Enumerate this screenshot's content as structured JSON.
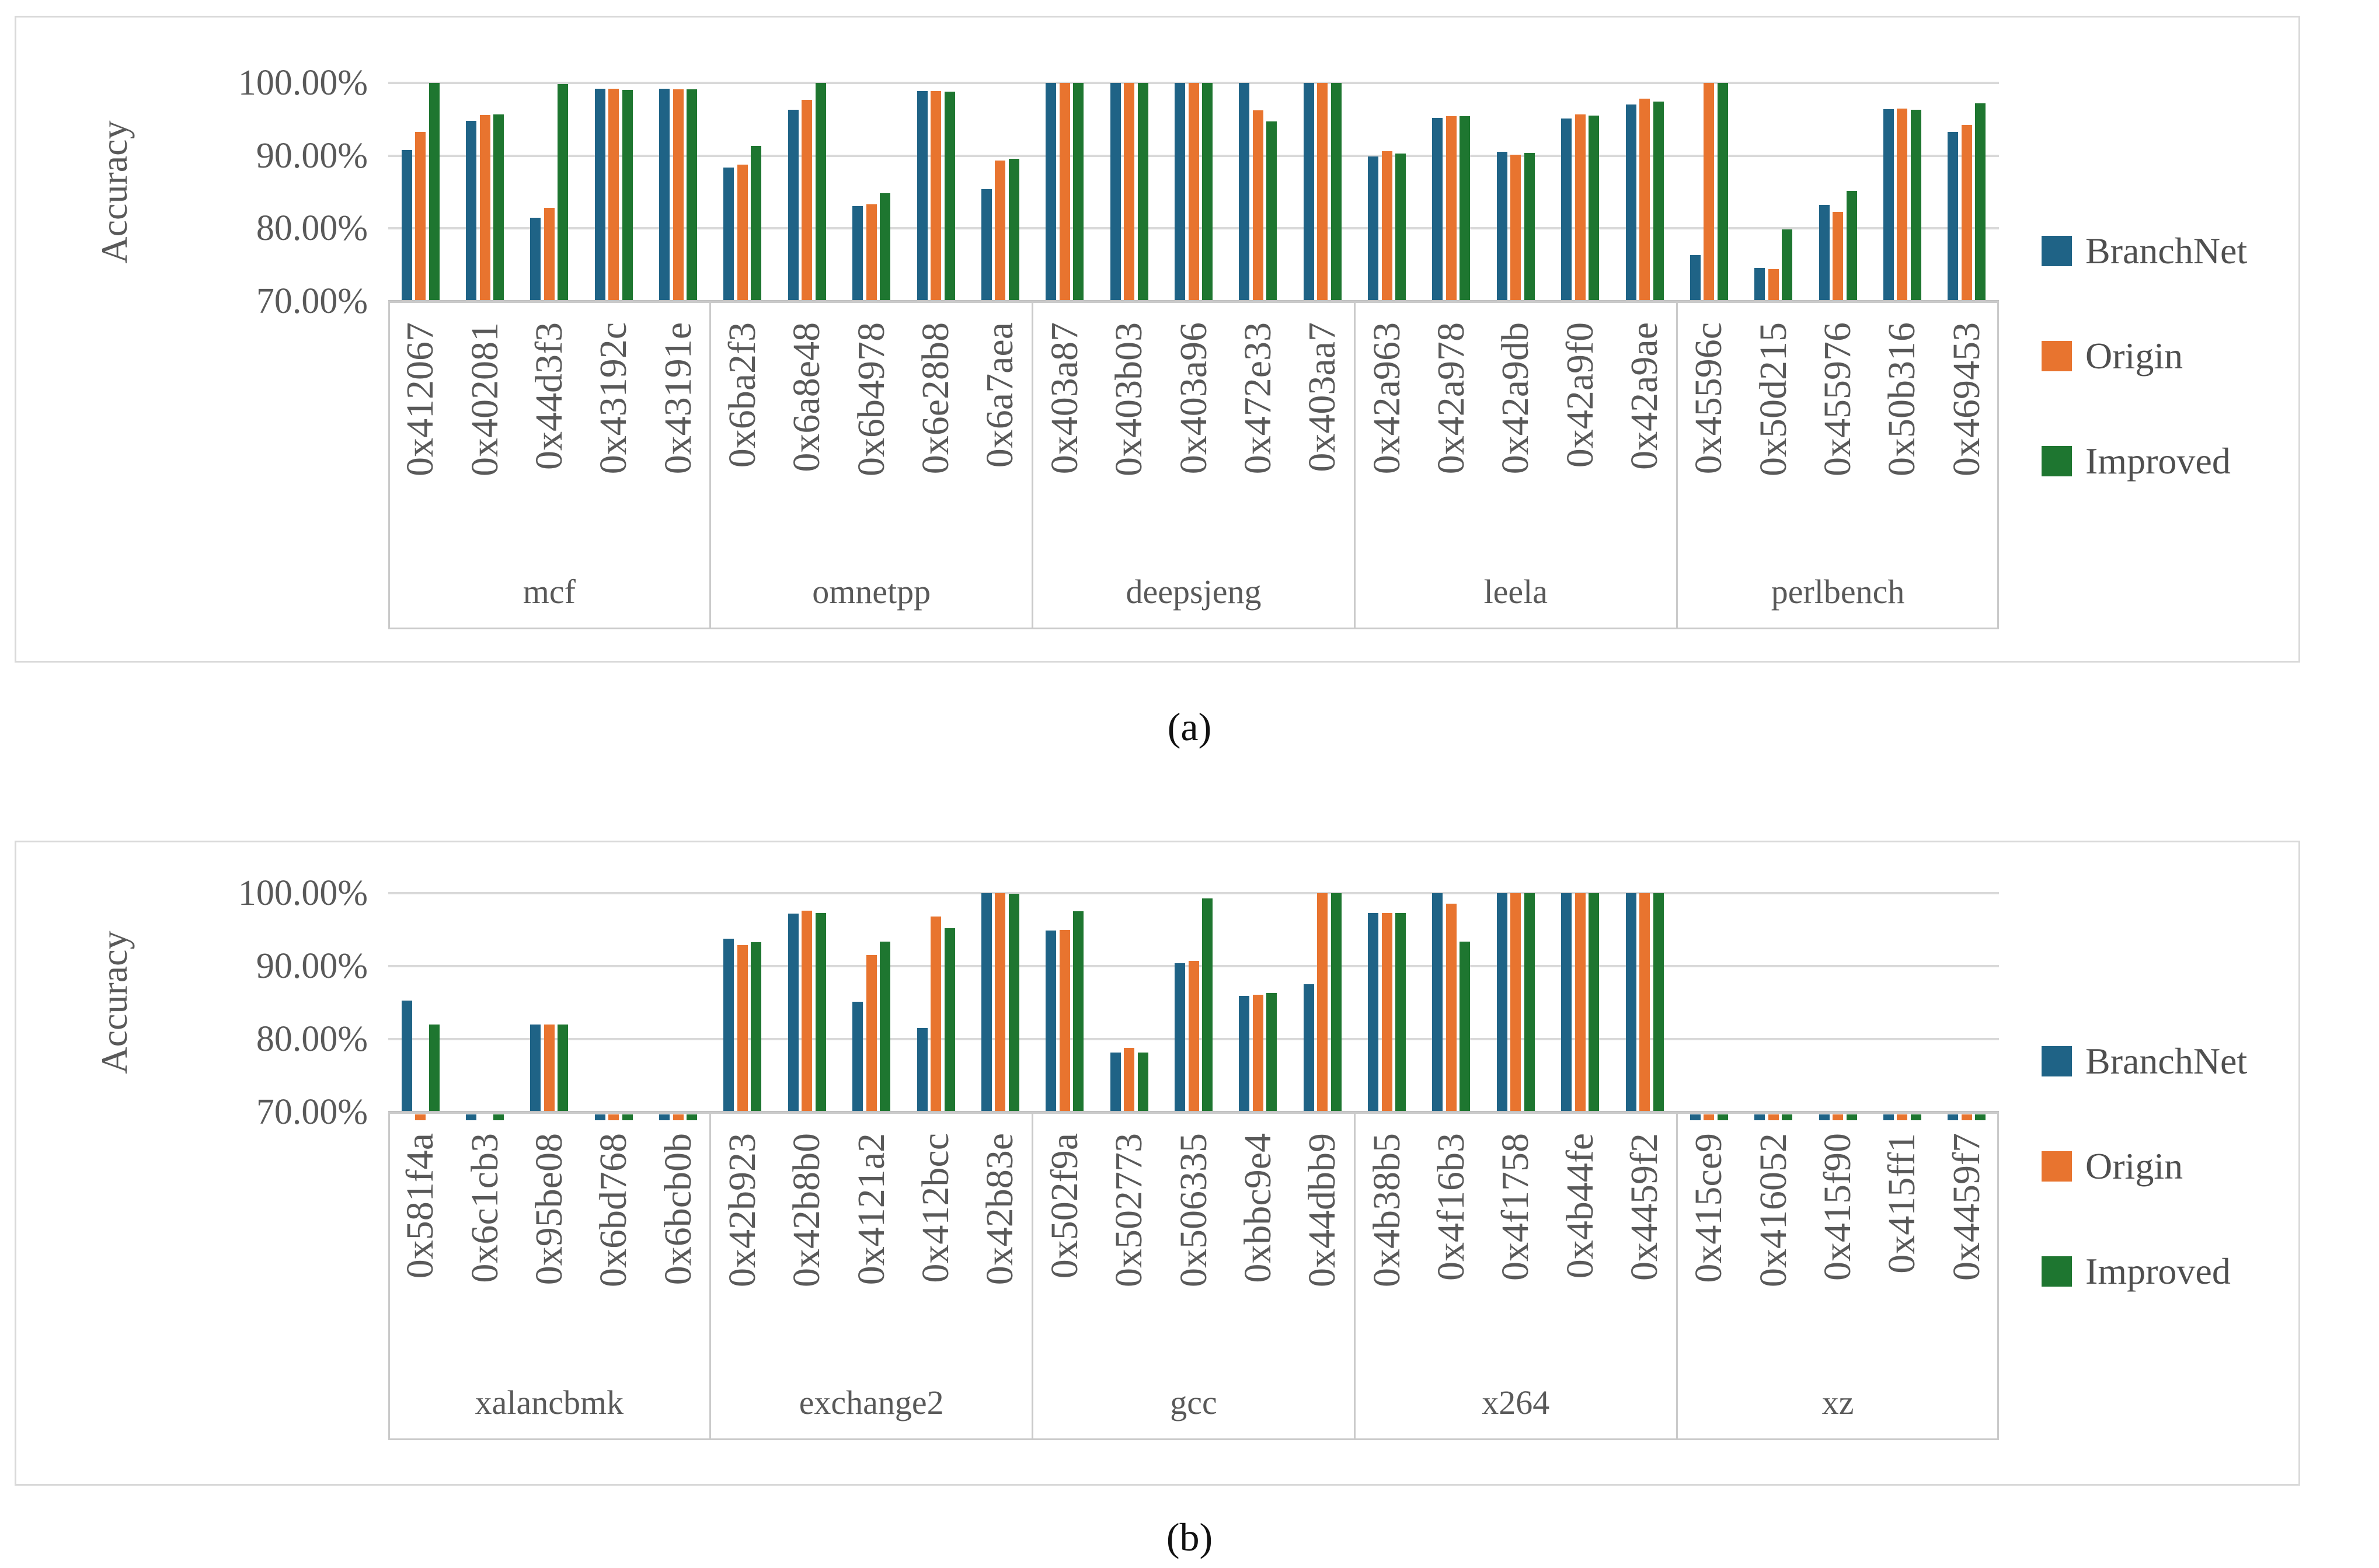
{
  "figure": {
    "captions": {
      "a": "(a)",
      "b": "(b)"
    }
  },
  "colors": {
    "background": "#ffffff",
    "panel_border": "#d9d9d9",
    "gridline": "#d9d9d9",
    "axis_line": "#c1c1c1",
    "label_box_line": "#cacaca",
    "text": "#595959",
    "caption_text": "#111111",
    "series": {
      "BranchNet": "#1f6386",
      "Origin": "#e8742f",
      "Improved": "#1e7630"
    }
  },
  "chart_data": [
    {
      "id": "a",
      "type": "bar",
      "caption": "(a)",
      "ylabel": "Accuracy",
      "ylim": [
        70,
        100
      ],
      "ytick_values": [
        100,
        90,
        80,
        70
      ],
      "ytick_labels": [
        "100.00%",
        "90.00%",
        "80.00%",
        "70.00%"
      ],
      "grid": true,
      "legend_position": "right",
      "legend": [
        "BranchNet",
        "Origin",
        "Improved"
      ],
      "groups": [
        {
          "label": "mcf",
          "categories": [
            "0x412067",
            "0x402081",
            "0x44d3f3",
            "0x43192c",
            "0x43191e"
          ],
          "series": [
            {
              "name": "BranchNet",
              "values": [
                90.8,
                94.8,
                81.5,
                99.2,
                99.2
              ]
            },
            {
              "name": "Origin",
              "values": [
                93.3,
                95.6,
                82.8,
                99.2,
                99.1
              ]
            },
            {
              "name": "Improved",
              "values": [
                100,
                95.7,
                99.8,
                99.0,
                99.1
              ]
            }
          ]
        },
        {
          "label": "omnetpp",
          "categories": [
            "0x6ba2f3",
            "0x6a8e48",
            "0x6b4978",
            "0x6e28b8",
            "0x6a7aea"
          ],
          "series": [
            {
              "name": "BranchNet",
              "values": [
                88.4,
                96.3,
                83.1,
                98.9,
                85.4
              ]
            },
            {
              "name": "Origin",
              "values": [
                88.8,
                97.7,
                83.3,
                98.9,
                89.3
              ]
            },
            {
              "name": "Improved",
              "values": [
                91.3,
                100,
                84.8,
                98.8,
                89.6
              ]
            }
          ]
        },
        {
          "label": "deepsjeng",
          "categories": [
            "0x403a87",
            "0x403b03",
            "0x403a96",
            "0x472e33",
            "0x403aa7"
          ],
          "series": [
            {
              "name": "BranchNet",
              "values": [
                100,
                100,
                100,
                100,
                100
              ]
            },
            {
              "name": "Origin",
              "values": [
                100,
                100,
                100,
                96.2,
                100
              ]
            },
            {
              "name": "Improved",
              "values": [
                100,
                100,
                100,
                94.7,
                100
              ]
            }
          ]
        },
        {
          "label": "leela",
          "categories": [
            "0x42a963",
            "0x42a978",
            "0x42a9db",
            "0x42a9f0",
            "0x42a9ae"
          ],
          "series": [
            {
              "name": "BranchNet",
              "values": [
                89.9,
                95.2,
                90.5,
                95.1,
                97.0
              ]
            },
            {
              "name": "Origin",
              "values": [
                90.6,
                95.4,
                90.1,
                95.7,
                97.8
              ]
            },
            {
              "name": "Improved",
              "values": [
                90.3,
                95.4,
                90.4,
                95.5,
                97.4
              ]
            }
          ]
        },
        {
          "label": "perlbench",
          "categories": [
            "0x45596c",
            "0x50d215",
            "0x455976",
            "0x50b316",
            "0x469453"
          ],
          "series": [
            {
              "name": "BranchNet",
              "values": [
                76.3,
                74.6,
                83.2,
                96.4,
                93.3
              ]
            },
            {
              "name": "Origin",
              "values": [
                100,
                74.4,
                82.3,
                96.5,
                94.2
              ]
            },
            {
              "name": "Improved",
              "values": [
                100,
                79.9,
                85.2,
                96.3,
                97.2
              ]
            }
          ]
        }
      ]
    },
    {
      "id": "b",
      "type": "bar",
      "caption": "(b)",
      "ylabel": "Accuracy",
      "ylim": [
        70,
        100
      ],
      "ytick_values": [
        100,
        90,
        80,
        70
      ],
      "ytick_labels": [
        "100.00%",
        "90.00%",
        "80.00%",
        "70.00%"
      ],
      "grid": true,
      "legend_position": "right",
      "legend": [
        "BranchNet",
        "Origin",
        "Improved"
      ],
      "groups": [
        {
          "label": "xalancbmk",
          "categories": [
            "0x581f4a",
            "0x6c1cb3",
            "0x95be08",
            "0x6bd768",
            "0x6bcb0b"
          ],
          "series": [
            {
              "name": "BranchNet",
              "values": [
                85.3,
                "low",
                82.0,
                "low",
                "low"
              ]
            },
            {
              "name": "Origin",
              "values": [
                "low",
                null,
                82.0,
                "low",
                "low"
              ]
            },
            {
              "name": "Improved",
              "values": [
                82.0,
                "low",
                82.0,
                "low",
                "low"
              ]
            }
          ]
        },
        {
          "label": "exchange2",
          "categories": [
            "0x42b923",
            "0x42b8b0",
            "0x4121a2",
            "0x412bcc",
            "0x42b83e"
          ],
          "series": [
            {
              "name": "BranchNet",
              "values": [
                93.8,
                97.2,
                85.1,
                81.5,
                100
              ]
            },
            {
              "name": "Origin",
              "values": [
                92.9,
                97.6,
                91.5,
                96.8,
                100
              ]
            },
            {
              "name": "Improved",
              "values": [
                93.3,
                97.3,
                93.4,
                95.2,
                99.9
              ]
            }
          ]
        },
        {
          "label": "gcc",
          "categories": [
            "0x502f9a",
            "0x502773",
            "0x506335",
            "0xbbc9e4",
            "0x44dbb9"
          ],
          "series": [
            {
              "name": "BranchNet",
              "values": [
                94.9,
                78.2,
                90.4,
                85.9,
                87.5
              ]
            },
            {
              "name": "Origin",
              "values": [
                95.0,
                78.8,
                90.7,
                86.1,
                100
              ]
            },
            {
              "name": "Improved",
              "values": [
                97.5,
                78.2,
                99.3,
                86.3,
                100
              ]
            }
          ]
        },
        {
          "label": "x264",
          "categories": [
            "0x4b38b5",
            "0x4f16b3",
            "0x4f1758",
            "0x4b44fe",
            "0x4459f2"
          ],
          "series": [
            {
              "name": "BranchNet",
              "values": [
                97.3,
                100,
                100,
                100,
                100
              ]
            },
            {
              "name": "Origin",
              "values": [
                97.3,
                98.6,
                100,
                100,
                100
              ]
            },
            {
              "name": "Improved",
              "values": [
                97.3,
                93.4,
                100,
                100,
                100
              ]
            }
          ]
        },
        {
          "label": "xz",
          "categories": [
            "0x415ce9",
            "0x416052",
            "0x415f90",
            "0x415ff1",
            "0x4459f7"
          ],
          "series": [
            {
              "name": "BranchNet",
              "values": [
                "low",
                "low",
                "low",
                "low",
                "low"
              ]
            },
            {
              "name": "Origin",
              "values": [
                "low",
                "low",
                "low",
                "low",
                "low"
              ]
            },
            {
              "name": "Improved",
              "values": [
                "low",
                "low",
                "low",
                "low",
                "low"
              ]
            }
          ]
        }
      ]
    }
  ]
}
